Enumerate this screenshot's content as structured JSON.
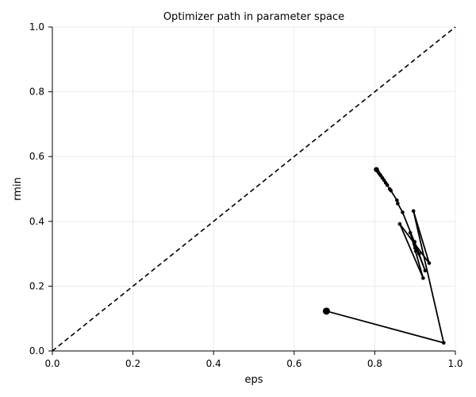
{
  "chart_data": {
    "type": "line",
    "title": "Optimizer path in parameter space",
    "xlabel": "eps",
    "ylabel": "rmin",
    "xlim": [
      0.0,
      1.0
    ],
    "ylim": [
      0.0,
      1.0
    ],
    "xticks": [
      "0.0",
      "0.2",
      "0.4",
      "0.6",
      "0.8",
      "1.0"
    ],
    "yticks": [
      "0.0",
      "0.2",
      "0.4",
      "0.6",
      "0.8",
      "1.0"
    ],
    "grid": true,
    "reference_line": {
      "type": "diagonal",
      "style": "dashed",
      "color": "#000000",
      "points": [
        [
          0.0,
          0.0
        ],
        [
          1.0,
          1.0
        ]
      ]
    },
    "start_point": {
      "x": 0.68,
      "y": 0.123
    },
    "path": [
      {
        "x": 0.68,
        "y": 0.123
      },
      {
        "x": 0.971,
        "y": 0.025
      },
      {
        "x": 0.896,
        "y": 0.432
      },
      {
        "x": 0.935,
        "y": 0.271
      },
      {
        "x": 0.862,
        "y": 0.392
      },
      {
        "x": 0.92,
        "y": 0.225
      },
      {
        "x": 0.888,
        "y": 0.365
      },
      {
        "x": 0.925,
        "y": 0.248
      },
      {
        "x": 0.899,
        "y": 0.337
      },
      {
        "x": 0.902,
        "y": 0.308
      },
      {
        "x": 0.9,
        "y": 0.318
      },
      {
        "x": 0.898,
        "y": 0.33
      },
      {
        "x": 0.91,
        "y": 0.3
      },
      {
        "x": 0.869,
        "y": 0.428
      },
      {
        "x": 0.857,
        "y": 0.455
      },
      {
        "x": 0.855,
        "y": 0.465
      },
      {
        "x": 0.84,
        "y": 0.495
      },
      {
        "x": 0.837,
        "y": 0.5
      },
      {
        "x": 0.831,
        "y": 0.512
      },
      {
        "x": 0.827,
        "y": 0.519
      },
      {
        "x": 0.823,
        "y": 0.527
      },
      {
        "x": 0.819,
        "y": 0.534
      },
      {
        "x": 0.815,
        "y": 0.541
      },
      {
        "x": 0.812,
        "y": 0.546
      },
      {
        "x": 0.809,
        "y": 0.551
      },
      {
        "x": 0.807,
        "y": 0.555
      },
      {
        "x": 0.805,
        "y": 0.558
      },
      {
        "x": 0.804,
        "y": 0.56
      }
    ],
    "highlight_start_index": 16,
    "colors": {
      "path": "#000000",
      "highlight": "#d62728",
      "grid": "#e6e6e6"
    }
  }
}
